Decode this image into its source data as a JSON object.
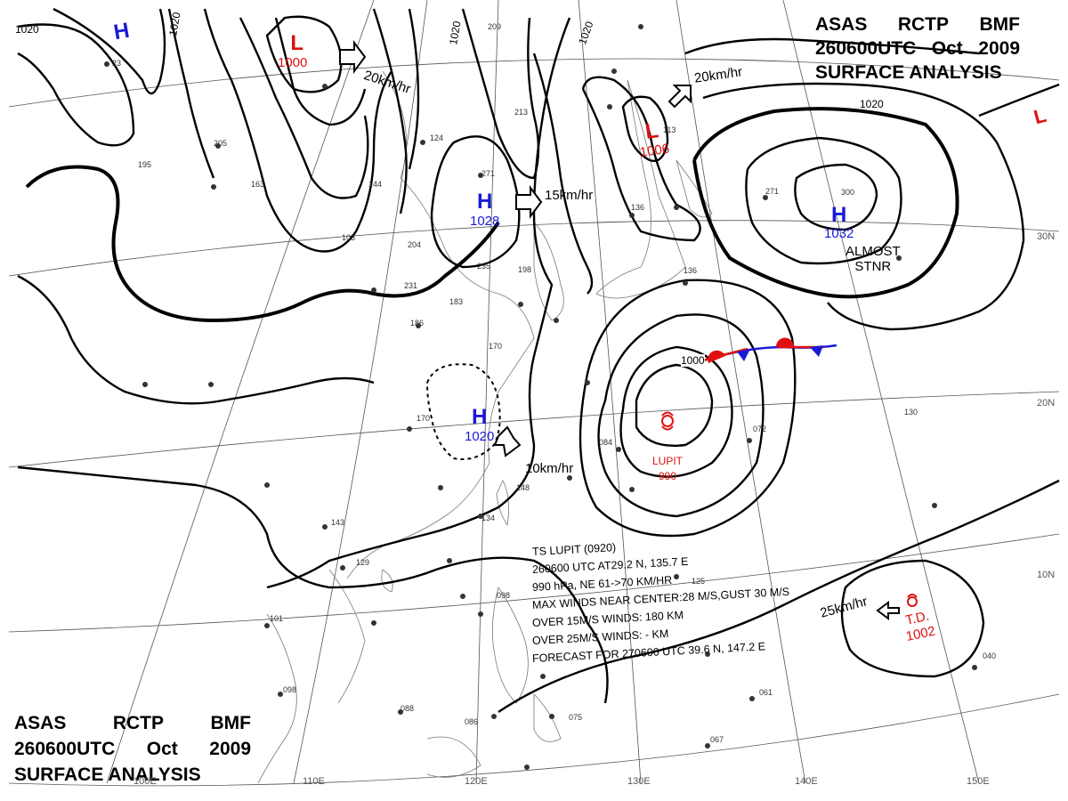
{
  "header_top": {
    "line1": [
      "ASAS",
      "RCTP",
      "BMF"
    ],
    "line2": [
      "260600UTC",
      "Oct",
      "2009"
    ],
    "line3": "SURFACE ANALYSIS"
  },
  "header_bottom": {
    "line1": [
      "ASAS",
      "RCTP",
      "BMF"
    ],
    "line2": [
      "260600UTC",
      "Oct",
      "2009"
    ],
    "line3": "SURFACE ANALYSIS"
  },
  "longitude_labels": [
    "100E",
    "110E",
    "120E",
    "130E",
    "140E",
    "150E"
  ],
  "latitude_labels": [
    "30N",
    "20N",
    "10N"
  ],
  "isobar_labels": [
    "1020",
    "1020",
    "1020",
    "1020",
    "1020",
    "1000"
  ],
  "pressure_systems": [
    {
      "type": "H",
      "value": "",
      "color": "#1a1ad6"
    },
    {
      "type": "L",
      "value": "1000",
      "color": "#e01010"
    },
    {
      "type": "H",
      "value": "1028",
      "color": "#1a1ad6"
    },
    {
      "type": "L",
      "value": "1006",
      "color": "#e01010"
    },
    {
      "type": "H",
      "value": "1032",
      "color": "#1a1ad6"
    },
    {
      "type": "H",
      "value": "1020",
      "color": "#1a1ad6"
    },
    {
      "type": "L",
      "value": "",
      "color": "#e01010"
    }
  ],
  "movements": [
    "20km/hr",
    "15km/hr",
    "20km/hr",
    "10km/hr",
    "25km/hr"
  ],
  "stationary_note": [
    "ALMOST",
    "STNR"
  ],
  "typhoon": {
    "name": "LUPIT",
    "pressure": "990"
  },
  "tropical_depression": {
    "label": "T.D.",
    "pressure": "1002"
  },
  "info_block": [
    "TS  LUPIT  (0920)",
    "260600 UTC  AT29.2 N, 135.7 E",
    "990 hPa, NE  61->70 KM/HR",
    "MAX WINDS NEAR CENTER:28 M/S,GUST 30 M/S",
    "OVER 15M/S WINDS: 180 KM",
    "OVER 25M/S WINDS: - KM",
    "FORECAST FOR 270600 UTC 39.6 N, 147.2 E"
  ],
  "station_obs": [
    "23",
    "195",
    "205",
    "163",
    "144",
    "103",
    "204",
    "235",
    "198",
    "271",
    "231",
    "186",
    "183",
    "170",
    "170",
    "143",
    "129",
    "101",
    "098",
    "088",
    "086",
    "075",
    "084",
    "072",
    "098",
    "130",
    "067",
    "061",
    "040",
    "125",
    "148",
    "134",
    "136",
    "300",
    "271",
    "209",
    "213",
    "124",
    "113",
    "136"
  ]
}
